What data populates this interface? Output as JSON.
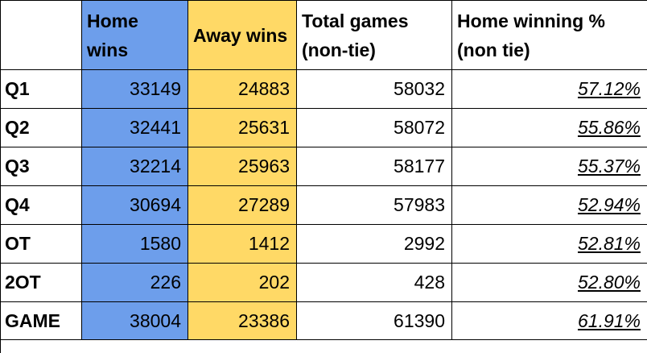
{
  "table": {
    "headers": [
      "",
      "Home wins",
      "Away wins",
      "Total games (non-tie)",
      "Home winning % (non tie)"
    ],
    "rows": [
      {
        "label": "Q1",
        "home_wins": "33149",
        "away_wins": "24883",
        "total": "58032",
        "home_pct": "57.12%"
      },
      {
        "label": "Q2",
        "home_wins": "32441",
        "away_wins": "25631",
        "total": "58072",
        "home_pct": "55.86%"
      },
      {
        "label": "Q3",
        "home_wins": "32214",
        "away_wins": "25963",
        "total": "58177",
        "home_pct": "55.37%"
      },
      {
        "label": "Q4",
        "home_wins": "30694",
        "away_wins": "27289",
        "total": "57983",
        "home_pct": "52.94%"
      },
      {
        "label": "OT",
        "home_wins": "1580",
        "away_wins": "1412",
        "total": "2992",
        "home_pct": "52.81%"
      },
      {
        "label": "2OT",
        "home_wins": "226",
        "away_wins": "202",
        "total": "428",
        "home_pct": "52.80%"
      },
      {
        "label": "GAME",
        "home_wins": "38004",
        "away_wins": "23386",
        "total": "61390",
        "home_pct": "61.91%"
      }
    ]
  },
  "colors": {
    "home_column": "#6d9eeb",
    "away_column": "#ffd966",
    "border": "#000000"
  }
}
